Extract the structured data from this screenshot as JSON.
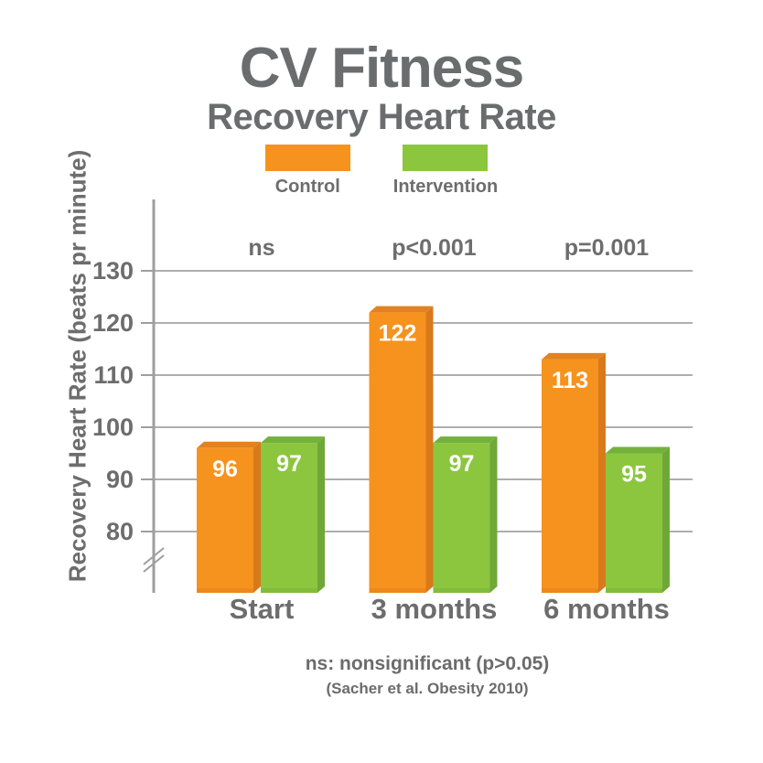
{
  "title": "CV Fitness",
  "subtitle": "Recovery Heart Rate",
  "legend": {
    "items": [
      {
        "label": "Control",
        "color": "#F6921E"
      },
      {
        "label": "Intervention",
        "color": "#8CC63F"
      }
    ]
  },
  "footer": {
    "note": "ns: nonsignificant (p>0.05)",
    "source": "(Sacher et al. Obesity 2010)"
  },
  "chart_data": {
    "type": "bar",
    "title": "CV Fitness",
    "subtitle": "Recovery Heart Rate",
    "categories": [
      "Start",
      "3 months",
      "6 months"
    ],
    "series": [
      {
        "name": "Control",
        "values": [
          96,
          122,
          113
        ],
        "color": "#F6921E",
        "top_color": "#E28220",
        "side_color": "#D8791C"
      },
      {
        "name": "Intervention",
        "values": [
          97,
          97,
          95
        ],
        "color": "#8CC63F",
        "top_color": "#74B13C",
        "side_color": "#6FA837"
      }
    ],
    "significance_labels": [
      "ns",
      "p<0.001",
      "p=0.001"
    ],
    "ylabel": "Recovery Heart Rate (beats pr minute)",
    "xlabel": "",
    "yticks": [
      130,
      120,
      110,
      100,
      90,
      80
    ],
    "ylim": [
      75,
      137
    ],
    "axis_break": true,
    "grid": true,
    "legend_position": "top",
    "colors": {
      "grid_line": "#AEAEAE",
      "axis_line": "#9E9E9E",
      "tick_text": "#6D6D6D",
      "value_text": "#FFFFFF",
      "annotation_text": "#6D6D6D"
    }
  }
}
